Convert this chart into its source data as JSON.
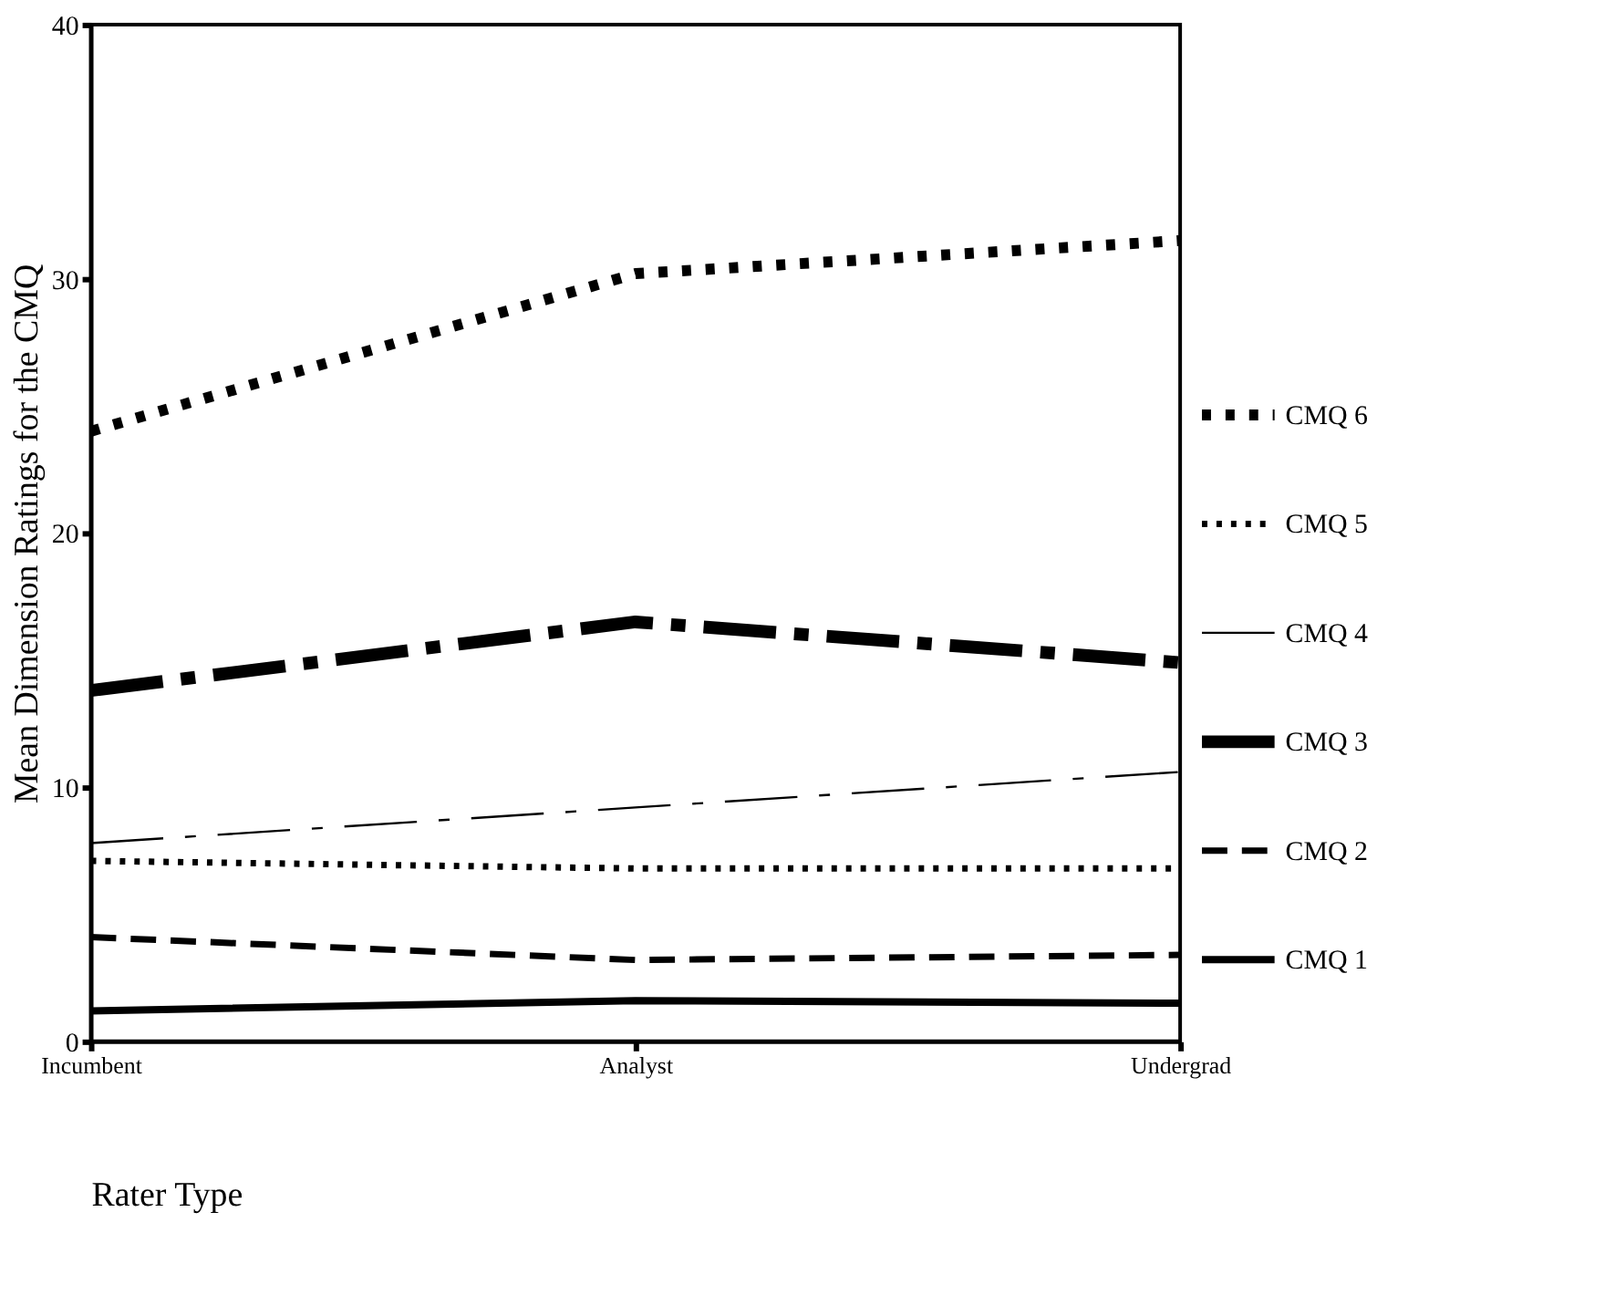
{
  "chart_data": {
    "type": "line",
    "xlabel": "Rater Type",
    "ylabel": "Mean Dimension Ratings for the CMQ",
    "categories": [
      "Incumbent",
      "Analyst",
      "Undergrad"
    ],
    "series": [
      {
        "name": "CMQ 6",
        "color": "#000000",
        "line_style": "dotted",
        "values": [
          24.0,
          30.2,
          31.5
        ]
      },
      {
        "name": "CMQ 5",
        "color": "#000000",
        "line_style": "dotted",
        "values": [
          7.1,
          6.8,
          6.8
        ]
      },
      {
        "name": "CMQ 4",
        "color": "#000000",
        "line_style": "dashed",
        "values": [
          7.8,
          9.2,
          10.6
        ]
      },
      {
        "name": "CMQ 3",
        "color": "#000000",
        "line_style": "dashed",
        "values": [
          13.8,
          16.5,
          14.9
        ]
      },
      {
        "name": "CMQ 2",
        "color": "#000000",
        "line_style": "dashed",
        "values": [
          4.1,
          3.2,
          3.4
        ]
      },
      {
        "name": "CMQ 1",
        "color": "#000000",
        "line_style": "solid",
        "values": [
          1.2,
          1.6,
          1.5
        ]
      }
    ],
    "ylim": [
      0,
      40
    ],
    "yticks": [
      0,
      10,
      20,
      30,
      40
    ],
    "grid": false,
    "legend": "right",
    "marker": "none"
  }
}
